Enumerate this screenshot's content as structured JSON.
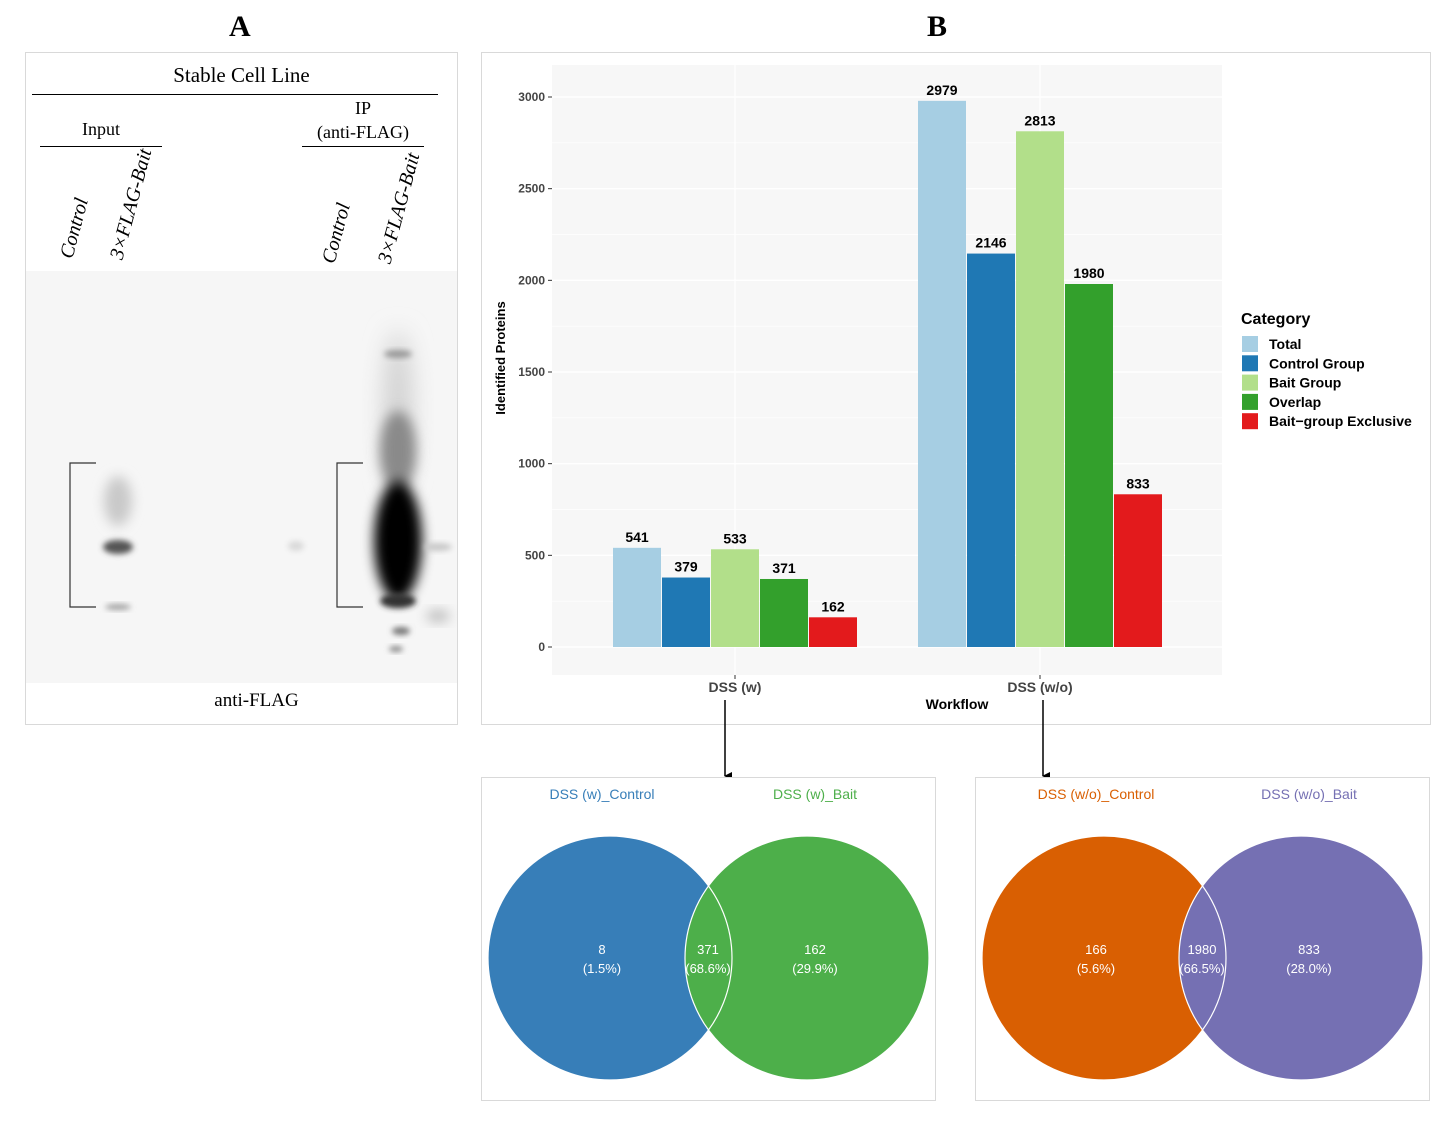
{
  "panels": {
    "a_letter": "A",
    "b_letter": "B"
  },
  "western": {
    "title": "Stable Cell Line",
    "input_label": "Input",
    "ip_label_line1": "IP",
    "ip_label_line2": "(anti-FLAG)",
    "lanes": [
      "Control",
      "3×FLAG-Bait",
      "Control",
      "3×FLAG-Bait"
    ],
    "footer": "anti-FLAG"
  },
  "chart_data": [
    {
      "type": "bar",
      "xlabel": "Workflow",
      "ylabel": "Identified Proteins",
      "categories": [
        "DSS (w)",
        "DSS (w/o)"
      ],
      "ylim": [
        0,
        3150
      ],
      "yticks": [
        0,
        500,
        1000,
        1500,
        2000,
        2500,
        3000
      ],
      "grid": true,
      "legend_title": "Category",
      "legend_position": "right",
      "series": [
        {
          "name": "Total",
          "color": "#a6cee3",
          "values": [
            541,
            2979
          ]
        },
        {
          "name": "Control Group",
          "color": "#1f78b4",
          "values": [
            379,
            2146
          ]
        },
        {
          "name": "Bait Group",
          "color": "#b2df8a",
          "values": [
            533,
            2813
          ]
        },
        {
          "name": "Overlap",
          "color": "#33a02c",
          "values": [
            371,
            1980
          ]
        },
        {
          "name": "Bait−group Exclusive",
          "color": "#e31a1c",
          "values": [
            162,
            833
          ]
        }
      ]
    },
    {
      "type": "venn",
      "sets": [
        {
          "name": "DSS (w)_Control",
          "color": "#377eb8"
        },
        {
          "name": "DSS (w)_Bait",
          "color": "#4daf4a"
        }
      ],
      "regions": [
        {
          "value": "8",
          "percent": "(1.5%)"
        },
        {
          "value": "371",
          "percent": "(68.6%)"
        },
        {
          "value": "162",
          "percent": "(29.9%)"
        }
      ]
    },
    {
      "type": "venn",
      "sets": [
        {
          "name": "DSS (w/o)_Control",
          "color": "#d95f02"
        },
        {
          "name": "DSS (w/o)_Bait",
          "color": "#7570b3"
        }
      ],
      "regions": [
        {
          "value": "166",
          "percent": "(5.6%)"
        },
        {
          "value": "1980",
          "percent": "(66.5%)"
        },
        {
          "value": "833",
          "percent": "(28.0%)"
        }
      ]
    }
  ]
}
